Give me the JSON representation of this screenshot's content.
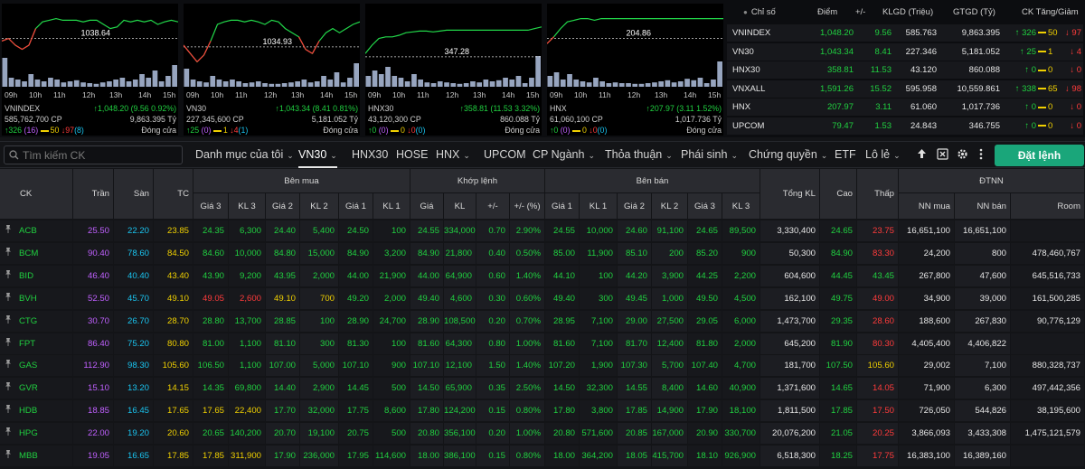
{
  "chart_panels": [
    {
      "name": "VNINDEX",
      "ref_value": "1038.64",
      "volume": "585,762,700 CP",
      "change_text": "↑1,048.20 (9.56 0.92%)",
      "value": "9,863.395 Tỷ",
      "status": "Đóng cửa",
      "advances": "↑326",
      "ceiling": "(16)",
      "unchanged": "50",
      "declines": "↓97",
      "floor": "(8)",
      "ref_frac": 0.42,
      "line": [
        0.45,
        0.42,
        0.5,
        0.55,
        0.5,
        0.3,
        0.22,
        0.2,
        0.18,
        0.2,
        0.2,
        0.2,
        0.22,
        0.2,
        0.2,
        0.25,
        0.3,
        0.28,
        0.2,
        0.22,
        0.2,
        0.22,
        0.2,
        0.25,
        0.22,
        0.2,
        0.22
      ],
      "vol": [
        0.8,
        0.25,
        0.2,
        0.15,
        0.35,
        0.2,
        0.15,
        0.25,
        0.2,
        0.12,
        0.15,
        0.18,
        0.12,
        0.1,
        0.08,
        0.12,
        0.15,
        0.2,
        0.25,
        0.15,
        0.2,
        0.35,
        0.25,
        0.45,
        0.15,
        0.3,
        0.6
      ]
    },
    {
      "name": "VN30",
      "ref_value": "1034.93",
      "volume": "227,345,600 CP",
      "change_text": "↑1,043.34 (8.41 0.81%)",
      "value": "5,181.052 Tỷ",
      "status": "Đóng cửa",
      "advances": "↑25",
      "ceiling": "(0)",
      "unchanged": "1",
      "declines": "↓4",
      "floor": "(1)",
      "ref_frac": 0.52,
      "line": [
        0.5,
        0.6,
        0.7,
        0.62,
        0.45,
        0.25,
        0.22,
        0.2,
        0.2,
        0.22,
        0.2,
        0.22,
        0.25,
        0.2,
        0.22,
        0.3,
        0.35,
        0.4,
        0.55,
        0.6,
        0.45,
        0.35,
        0.3,
        0.35,
        0.3,
        0.25,
        0.22
      ],
      "vol": [
        0.5,
        0.2,
        0.15,
        0.12,
        0.3,
        0.2,
        0.15,
        0.2,
        0.15,
        0.1,
        0.12,
        0.15,
        0.1,
        0.08,
        0.08,
        0.1,
        0.12,
        0.15,
        0.2,
        0.12,
        0.15,
        0.3,
        0.2,
        0.4,
        0.12,
        0.25,
        0.65
      ]
    },
    {
      "name": "HNX30",
      "ref_value": "347.28",
      "volume": "43,120,300 CP",
      "change_text": "↑358.81 (11.53 3.32%)",
      "value": "860.088 Tỷ",
      "status": "Đóng cửa",
      "advances": "↑0",
      "ceiling": "(0)",
      "unchanged": "0",
      "declines": "↓0",
      "floor": "(0)",
      "ref_frac": 0.64,
      "line": [
        0.6,
        0.5,
        0.42,
        0.4,
        0.4,
        0.38,
        0.35,
        0.34,
        0.33,
        0.33,
        0.34,
        0.33,
        0.32,
        0.32,
        0.32,
        0.32,
        0.32,
        0.32,
        0.32,
        0.32,
        0.32,
        0.32,
        0.32,
        0.32,
        0.32,
        0.3,
        0.28
      ],
      "vol": [
        0.3,
        0.45,
        0.35,
        0.55,
        0.3,
        0.25,
        0.15,
        0.35,
        0.2,
        0.12,
        0.1,
        0.15,
        0.12,
        0.1,
        0.08,
        0.1,
        0.15,
        0.12,
        0.2,
        0.15,
        0.18,
        0.25,
        0.2,
        0.3,
        0.1,
        0.25,
        0.85
      ]
    },
    {
      "name": "HNX",
      "ref_value": "204.86",
      "volume": "61,060,100 CP",
      "change_text": "↑207.97 (3.11 1.52%)",
      "value": "1,017.736 Tỷ",
      "status": "Đóng cửa",
      "advances": "↑0",
      "ceiling": "(0)",
      "unchanged": "0",
      "declines": "↓0",
      "floor": "(0)",
      "ref_frac": 0.42,
      "line": [
        0.48,
        0.4,
        0.3,
        0.22,
        0.2,
        0.18,
        0.18,
        0.2,
        0.18,
        0.18,
        0.18,
        0.18,
        0.18,
        0.18,
        0.18,
        0.18,
        0.18,
        0.18,
        0.18,
        0.18,
        0.18,
        0.18,
        0.18,
        0.18,
        0.18,
        0.18,
        0.18
      ],
      "vol": [
        0.3,
        0.4,
        0.2,
        0.35,
        0.2,
        0.15,
        0.12,
        0.25,
        0.15,
        0.1,
        0.12,
        0.1,
        0.1,
        0.08,
        0.08,
        0.1,
        0.12,
        0.15,
        0.18,
        0.12,
        0.15,
        0.22,
        0.18,
        0.25,
        0.1,
        0.2,
        0.7
      ]
    }
  ],
  "chart_hours": [
    "09h",
    "10h",
    "11h",
    "12h",
    "13h",
    "14h",
    "15h"
  ],
  "index_table": {
    "headers": [
      "Chỉ số",
      "Điểm",
      "+/-",
      "KLGD (Triệu)",
      "GTGD (Tỷ)",
      "CK Tăng/Giảm"
    ],
    "rows": [
      {
        "name": "VNINDEX",
        "point": "1,048.20",
        "change": "9.56",
        "klgd": "585.763",
        "gtgd": "9,863.395",
        "adv": "↑ 326",
        "unch": "50",
        "dec": "↓ 97"
      },
      {
        "name": "VN30",
        "point": "1,043.34",
        "change": "8.41",
        "klgd": "227.346",
        "gtgd": "5,181.052",
        "adv": "↑ 25",
        "unch": "1",
        "dec": "↓ 4"
      },
      {
        "name": "HNX30",
        "point": "358.81",
        "change": "11.53",
        "klgd": "43.120",
        "gtgd": "860.088",
        "adv": "↑ 0",
        "unch": "0",
        "dec": "↓ 0"
      },
      {
        "name": "VNXALL",
        "point": "1,591.26",
        "change": "15.52",
        "klgd": "595.958",
        "gtgd": "10,559.861",
        "adv": "↑ 338",
        "unch": "65",
        "dec": "↓ 98"
      },
      {
        "name": "HNX",
        "point": "207.97",
        "change": "3.11",
        "klgd": "61.060",
        "gtgd": "1,017.736",
        "adv": "↑ 0",
        "unch": "0",
        "dec": "↓ 0"
      },
      {
        "name": "UPCOM",
        "point": "79.47",
        "change": "1.53",
        "klgd": "24.843",
        "gtgd": "346.755",
        "adv": "↑ 0",
        "unch": "0",
        "dec": "↓ 0"
      }
    ]
  },
  "toolbar": {
    "search_placeholder": "Tìm kiếm CK",
    "tabs": [
      "Danh mục của tôi",
      "VN30",
      "HNX30",
      "HOSE",
      "HNX",
      "UPCOM",
      "CP Ngành",
      "Thỏa thuận",
      "Phái sinh",
      "Chứng quyền",
      "ETF",
      "Lô lẻ"
    ],
    "order_button": "Đặt lệnh"
  },
  "board": {
    "groups": {
      "buy": "Bên mua",
      "match": "Khớp lệnh",
      "sell": "Bên bán",
      "foreign": "ĐTNN"
    },
    "headers": {
      "ck": "CK",
      "tran": "Trần",
      "san": "Sàn",
      "tc": "TC",
      "buy": [
        "Giá 3",
        "KL 3",
        "Giá 2",
        "KL 2",
        "Giá 1",
        "KL 1"
      ],
      "match": [
        "Giá",
        "KL",
        "+/-",
        "+/- (%)"
      ],
      "sell": [
        "Giá 1",
        "KL 1",
        "Giá 2",
        "KL 2",
        "Giá 3",
        "KL 3"
      ],
      "total": "Tổng KL",
      "high": "Cao",
      "low": "Thấp",
      "foreign": [
        "NN mua",
        "NN bán",
        "Room"
      ]
    },
    "rows": [
      {
        "sym": "ACB",
        "tran": "25.50",
        "san": "22.20",
        "tc": "23.85",
        "b3": "24.35",
        "bk3": "6,300",
        "b2": "24.40",
        "bk2": "5,400",
        "b1": "24.50",
        "bk1": "100",
        "mp": "24.55",
        "mk": "334,000",
        "chg": "0.70",
        "pct": "2.90%",
        "s1": "24.55",
        "sk1": "10,000",
        "s2": "24.60",
        "sk2": "91,100",
        "s3": "24.65",
        "sk3": "89,500",
        "total": "3,330,400",
        "high": "24.65",
        "low": "23.75",
        "nnb": "16,651,100",
        "nns": "16,651,100",
        "room": ""
      },
      {
        "sym": "BCM",
        "tran": "90.40",
        "san": "78.60",
        "tc": "84.50",
        "b3": "84.60",
        "bk3": "10,000",
        "b2": "84.80",
        "bk2": "15,000",
        "b1": "84.90",
        "bk1": "3,200",
        "mp": "84.90",
        "mk": "21,800",
        "chg": "0.40",
        "pct": "0.50%",
        "s1": "85.00",
        "sk1": "11,900",
        "s2": "85.10",
        "sk2": "200",
        "s3": "85.20",
        "sk3": "900",
        "total": "50,300",
        "high": "84.90",
        "low": "83.30",
        "nnb": "24,200",
        "nns": "800",
        "room": "478,460,767"
      },
      {
        "sym": "BID",
        "tran": "46.40",
        "san": "40.40",
        "tc": "43.40",
        "b3": "43.90",
        "bk3": "9,200",
        "b2": "43.95",
        "bk2": "2,000",
        "b1": "44.00",
        "bk1": "21,900",
        "mp": "44.00",
        "mk": "64,900",
        "chg": "0.60",
        "pct": "1.40%",
        "s1": "44.10",
        "sk1": "100",
        "s2": "44.20",
        "sk2": "3,900",
        "s3": "44.25",
        "sk3": "2,200",
        "total": "604,600",
        "high": "44.45",
        "low": "43.45",
        "nnb": "267,800",
        "nns": "47,600",
        "room": "645,516,733"
      },
      {
        "sym": "BVH",
        "tran": "52.50",
        "san": "45.70",
        "tc": "49.10",
        "b3": "49.05",
        "bk3": "2,600",
        "b2": "49.10",
        "bk2": "700",
        "b1": "49.20",
        "bk1": "2,000",
        "mp": "49.40",
        "mk": "4,600",
        "chg": "0.30",
        "pct": "0.60%",
        "s1": "49.40",
        "sk1": "300",
        "s2": "49.45",
        "sk2": "1,000",
        "s3": "49.50",
        "sk3": "4,500",
        "total": "162,100",
        "high": "49.75",
        "low": "49.00",
        "nnb": "34,900",
        "nns": "39,000",
        "room": "161,500,285"
      },
      {
        "sym": "CTG",
        "tran": "30.70",
        "san": "26.70",
        "tc": "28.70",
        "b3": "28.80",
        "bk3": "13,700",
        "b2": "28.85",
        "bk2": "100",
        "b1": "28.90",
        "bk1": "24,700",
        "mp": "28.90",
        "mk": "108,500",
        "chg": "0.20",
        "pct": "0.70%",
        "s1": "28.95",
        "sk1": "7,100",
        "s2": "29.00",
        "sk2": "27,500",
        "s3": "29.05",
        "sk3": "6,000",
        "total": "1,473,700",
        "high": "29.35",
        "low": "28.60",
        "nnb": "188,600",
        "nns": "267,830",
        "room": "90,776,129"
      },
      {
        "sym": "FPT",
        "tran": "86.40",
        "san": "75.20",
        "tc": "80.80",
        "b3": "81.00",
        "bk3": "1,100",
        "b2": "81.10",
        "bk2": "300",
        "b1": "81.30",
        "bk1": "100",
        "mp": "81.60",
        "mk": "64,300",
        "chg": "0.80",
        "pct": "1.00%",
        "s1": "81.60",
        "sk1": "7,100",
        "s2": "81.70",
        "sk2": "12,400",
        "s3": "81.80",
        "sk3": "2,000",
        "total": "645,200",
        "high": "81.90",
        "low": "80.30",
        "nnb": "4,405,400",
        "nns": "4,406,822",
        "room": ""
      },
      {
        "sym": "GAS",
        "tran": "112.90",
        "san": "98.30",
        "tc": "105.60",
        "b3": "106.50",
        "bk3": "1,100",
        "b2": "107.00",
        "bk2": "5,000",
        "b1": "107.10",
        "bk1": "900",
        "mp": "107.10",
        "mk": "12,100",
        "chg": "1.50",
        "pct": "1.40%",
        "s1": "107.20",
        "sk1": "1,900",
        "s2": "107.30",
        "sk2": "5,700",
        "s3": "107.40",
        "sk3": "4,700",
        "total": "181,700",
        "high": "107.50",
        "low": "105.60",
        "nnb": "29,002",
        "nns": "7,100",
        "room": "880,328,737"
      },
      {
        "sym": "GVR",
        "tran": "15.10",
        "san": "13.20",
        "tc": "14.15",
        "b3": "14.35",
        "bk3": "69,800",
        "b2": "14.40",
        "bk2": "2,900",
        "b1": "14.45",
        "bk1": "500",
        "mp": "14.50",
        "mk": "65,900",
        "chg": "0.35",
        "pct": "2.50%",
        "s1": "14.50",
        "sk1": "32,300",
        "s2": "14.55",
        "sk2": "8,400",
        "s3": "14.60",
        "sk3": "40,900",
        "total": "1,371,600",
        "high": "14.65",
        "low": "14.05",
        "nnb": "71,900",
        "nns": "6,300",
        "room": "497,442,356"
      },
      {
        "sym": "HDB",
        "tran": "18.85",
        "san": "16.45",
        "tc": "17.65",
        "b3": "17.65",
        "bk3": "22,400",
        "b2": "17.70",
        "bk2": "32,000",
        "b1": "17.75",
        "bk1": "8,600",
        "mp": "17.80",
        "mk": "124,200",
        "chg": "0.15",
        "pct": "0.80%",
        "s1": "17.80",
        "sk1": "3,800",
        "s2": "17.85",
        "sk2": "14,900",
        "s3": "17.90",
        "sk3": "18,100",
        "total": "1,811,500",
        "high": "17.85",
        "low": "17.50",
        "nnb": "726,050",
        "nns": "544,826",
        "room": "38,195,600"
      },
      {
        "sym": "HPG",
        "tran": "22.00",
        "san": "19.20",
        "tc": "20.60",
        "b3": "20.65",
        "bk3": "140,200",
        "b2": "20.70",
        "bk2": "19,100",
        "b1": "20.75",
        "bk1": "500",
        "mp": "20.80",
        "mk": "356,100",
        "chg": "0.20",
        "pct": "1.00%",
        "s1": "20.80",
        "sk1": "571,600",
        "s2": "20.85",
        "sk2": "167,000",
        "s3": "20.90",
        "sk3": "330,700",
        "total": "20,076,200",
        "high": "21.05",
        "low": "20.25",
        "nnb": "3,866,093",
        "nns": "3,433,308",
        "room": "1,475,121,579"
      },
      {
        "sym": "MBB",
        "tran": "19.05",
        "san": "16.65",
        "tc": "17.85",
        "b3": "17.85",
        "bk3": "311,900",
        "b2": "17.90",
        "bk2": "236,000",
        "b1": "17.95",
        "bk1": "114,600",
        "mp": "18.00",
        "mk": "386,100",
        "chg": "0.15",
        "pct": "0.80%",
        "s1": "18.00",
        "sk1": "364,200",
        "s2": "18.05",
        "sk2": "415,700",
        "s3": "18.10",
        "sk3": "926,900",
        "total": "6,518,300",
        "high": "18.25",
        "low": "17.75",
        "nnb": "16,383,100",
        "nns": "16,389,160",
        "room": ""
      }
    ]
  },
  "colors": {
    "up": "#20d040",
    "down": "#ff3b3b",
    "ref": "#f0d000",
    "ceiling": "#c060ff",
    "floor": "#19c4f0",
    "accent": "#1aa67a"
  },
  "icons": [
    "search-icon",
    "chevron-down-icon",
    "arrow-up-icon",
    "excel-icon",
    "gear-icon",
    "more-vertical-icon",
    "pin-icon"
  ]
}
